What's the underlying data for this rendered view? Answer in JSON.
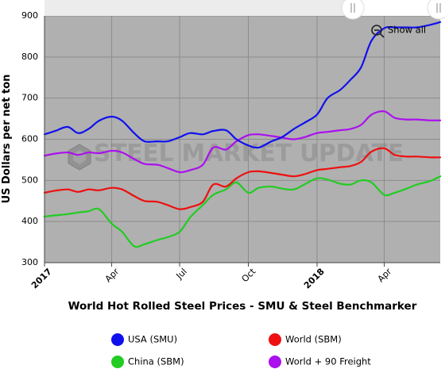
{
  "chart_data": {
    "type": "line",
    "title": "World Hot Rolled Steel Prices - SMU & Steel Benchmarker",
    "ylabel": "US Dollars per net ton",
    "xlabel": "",
    "ylim": [
      300,
      900
    ],
    "yticks": [
      300,
      400,
      500,
      600,
      700,
      800,
      900
    ],
    "xlim": [
      "2017-01-01",
      "2018-06-15"
    ],
    "xticks": [
      {
        "date": "2017-01-01",
        "label": "2017",
        "major": true
      },
      {
        "date": "2017-04-01",
        "label": "Apr",
        "major": false
      },
      {
        "date": "2017-07-01",
        "label": "Jul",
        "major": false
      },
      {
        "date": "2017-10-01",
        "label": "Oct",
        "major": false
      },
      {
        "date": "2018-01-01",
        "label": "2018",
        "major": true
      },
      {
        "date": "2018-04-01",
        "label": "Apr",
        "major": false
      }
    ],
    "grid": true,
    "legend_position": "bottom",
    "series": [
      {
        "name": "USA (SMU)",
        "color": "#1010ee",
        "x": [
          "2017-01-01",
          "2017-01-15",
          "2017-02-01",
          "2017-02-15",
          "2017-03-01",
          "2017-03-15",
          "2017-04-01",
          "2017-04-15",
          "2017-05-01",
          "2017-05-15",
          "2017-06-01",
          "2017-06-15",
          "2017-07-01",
          "2017-07-15",
          "2017-08-01",
          "2017-08-15",
          "2017-09-01",
          "2017-09-15",
          "2017-10-01",
          "2017-10-15",
          "2017-11-01",
          "2017-11-15",
          "2017-12-01",
          "2017-12-15",
          "2018-01-01",
          "2018-01-15",
          "2018-02-01",
          "2018-02-15",
          "2018-03-01",
          "2018-03-15",
          "2018-04-01",
          "2018-04-15",
          "2018-05-01",
          "2018-05-15",
          "2018-06-01",
          "2018-06-15"
        ],
        "values": [
          612,
          620,
          630,
          615,
          625,
          645,
          655,
          645,
          615,
          595,
          595,
          595,
          605,
          615,
          612,
          620,
          622,
          600,
          585,
          580,
          595,
          605,
          625,
          640,
          660,
          700,
          720,
          745,
          775,
          840,
          870,
          872,
          872,
          872,
          878,
          885
        ]
      },
      {
        "name": "World (SBM)",
        "color": "#ee1010",
        "x": [
          "2017-01-01",
          "2017-01-15",
          "2017-02-01",
          "2017-02-15",
          "2017-03-01",
          "2017-03-15",
          "2017-04-01",
          "2017-04-15",
          "2017-05-01",
          "2017-05-15",
          "2017-06-01",
          "2017-06-15",
          "2017-07-01",
          "2017-07-15",
          "2017-08-01",
          "2017-08-15",
          "2017-09-01",
          "2017-09-15",
          "2017-10-01",
          "2017-10-15",
          "2017-11-01",
          "2017-11-15",
          "2017-12-01",
          "2017-12-15",
          "2018-01-01",
          "2018-01-15",
          "2018-02-01",
          "2018-02-15",
          "2018-03-01",
          "2018-03-15",
          "2018-04-01",
          "2018-04-15",
          "2018-05-01",
          "2018-05-15",
          "2018-06-01",
          "2018-06-15"
        ],
        "values": [
          470,
          475,
          478,
          472,
          478,
          476,
          482,
          478,
          462,
          450,
          448,
          440,
          430,
          435,
          448,
          490,
          485,
          505,
          520,
          522,
          518,
          514,
          510,
          515,
          525,
          528,
          532,
          535,
          545,
          570,
          578,
          562,
          558,
          558,
          556,
          556
        ]
      },
      {
        "name": "China (SBM)",
        "color": "#22cc22",
        "x": [
          "2017-01-01",
          "2017-01-15",
          "2017-02-01",
          "2017-02-15",
          "2017-03-01",
          "2017-03-15",
          "2017-04-01",
          "2017-04-15",
          "2017-05-01",
          "2017-05-15",
          "2017-06-01",
          "2017-06-15",
          "2017-07-01",
          "2017-07-15",
          "2017-08-01",
          "2017-08-15",
          "2017-09-01",
          "2017-09-15",
          "2017-10-01",
          "2017-10-15",
          "2017-11-01",
          "2017-11-15",
          "2017-12-01",
          "2017-12-15",
          "2018-01-01",
          "2018-01-15",
          "2018-02-01",
          "2018-02-15",
          "2018-03-01",
          "2018-03-15",
          "2018-04-01",
          "2018-04-15",
          "2018-05-01",
          "2018-05-15",
          "2018-06-01",
          "2018-06-15"
        ],
        "values": [
          412,
          415,
          418,
          422,
          425,
          430,
          395,
          375,
          340,
          345,
          355,
          362,
          375,
          410,
          440,
          465,
          478,
          495,
          470,
          482,
          485,
          480,
          478,
          490,
          505,
          502,
          492,
          490,
          500,
          495,
          465,
          470,
          480,
          490,
          498,
          510
        ]
      },
      {
        "name": "World + 90 Freight",
        "color": "#aa10ee",
        "x": [
          "2017-01-01",
          "2017-01-15",
          "2017-02-01",
          "2017-02-15",
          "2017-03-01",
          "2017-03-15",
          "2017-04-01",
          "2017-04-15",
          "2017-05-01",
          "2017-05-15",
          "2017-06-01",
          "2017-06-15",
          "2017-07-01",
          "2017-07-15",
          "2017-08-01",
          "2017-08-15",
          "2017-09-01",
          "2017-09-15",
          "2017-10-01",
          "2017-10-15",
          "2017-11-01",
          "2017-11-15",
          "2017-12-01",
          "2017-12-15",
          "2018-01-01",
          "2018-01-15",
          "2018-02-01",
          "2018-02-15",
          "2018-03-01",
          "2018-03-15",
          "2018-04-01",
          "2018-04-15",
          "2018-05-01",
          "2018-05-15",
          "2018-06-01",
          "2018-06-15"
        ],
        "values": [
          560,
          565,
          568,
          562,
          568,
          566,
          572,
          568,
          552,
          540,
          538,
          530,
          520,
          525,
          538,
          580,
          575,
          595,
          610,
          612,
          608,
          604,
          600,
          605,
          615,
          618,
          622,
          625,
          635,
          660,
          668,
          652,
          648,
          648,
          646,
          646
        ]
      }
    ]
  },
  "toolbar": {
    "show_all_label": "Show all",
    "zoom_out_icon": "zoom-out-icon"
  },
  "watermark": {
    "text": "STEEL MARKET UPDATE"
  },
  "plot_background": "#b0b0b0"
}
